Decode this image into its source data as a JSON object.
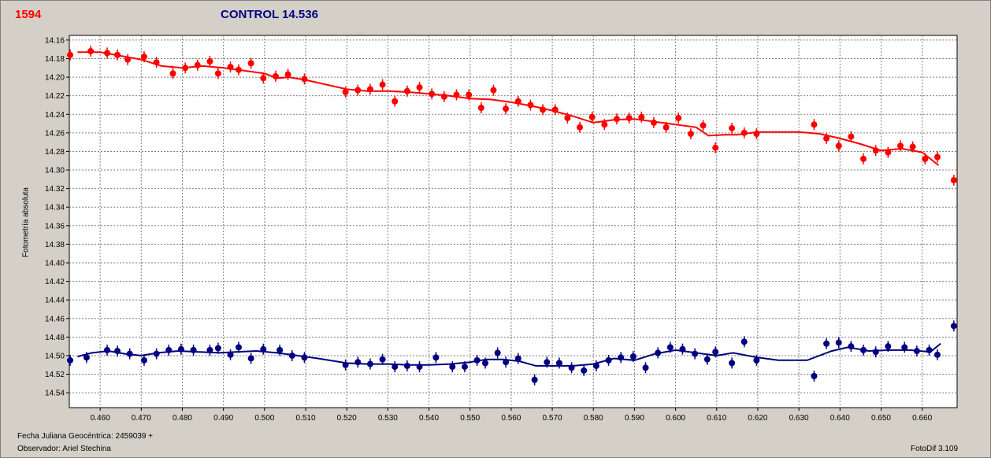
{
  "header": {
    "target_name": "1594",
    "control_label": "CONTROL 14.536"
  },
  "footer": {
    "jd_label": "Fecha Juliana Geocéntrica: 2459039 +",
    "observer": "Observador: Ariel Stechina",
    "software": "FotoDif 3.109"
  },
  "colors": {
    "target": "#ff0000",
    "control": "#000080",
    "plot_background": "#ffffff",
    "grid": "#808080",
    "window": "#d4d0c8"
  },
  "chart_data": {
    "type": "scatter",
    "title": "",
    "xlabel": "",
    "ylabel": "Fotometría absoluta",
    "xlim": [
      0.4525,
      0.6685
    ],
    "ylim": [
      14.556,
      14.155
    ],
    "y_inverted": true,
    "grid": true,
    "x_ticks": [
      "0.460",
      "0.470",
      "0.480",
      "0.490",
      "0.500",
      "0.510",
      "0.520",
      "0.530",
      "0.540",
      "0.550",
      "0.560",
      "0.570",
      "0.580",
      "0.590",
      "0.600",
      "0.610",
      "0.620",
      "0.630",
      "0.640",
      "0.650",
      "0.660"
    ],
    "y_ticks": [
      "14.16",
      "14.18",
      "14.20",
      "14.22",
      "14.24",
      "14.26",
      "14.28",
      "14.30",
      "14.32",
      "14.34",
      "14.36",
      "14.38",
      "14.40",
      "14.42",
      "14.44",
      "14.46",
      "14.48",
      "14.50",
      "14.52",
      "14.54"
    ],
    "series": [
      {
        "name": "1594",
        "color": "#ff0000",
        "points": [
          [
            0.4527,
            14.176
          ],
          [
            0.4577,
            14.172
          ],
          [
            0.4617,
            14.174
          ],
          [
            0.4642,
            14.176
          ],
          [
            0.4667,
            14.181
          ],
          [
            0.4707,
            14.178
          ],
          [
            0.4737,
            14.184
          ],
          [
            0.4777,
            14.196
          ],
          [
            0.4807,
            14.19
          ],
          [
            0.4837,
            14.187
          ],
          [
            0.4867,
            14.183
          ],
          [
            0.4887,
            14.196
          ],
          [
            0.4917,
            14.189
          ],
          [
            0.4937,
            14.192
          ],
          [
            0.4967,
            14.185
          ],
          [
            0.4997,
            14.201
          ],
          [
            0.5027,
            14.199
          ],
          [
            0.5057,
            14.197
          ],
          [
            0.5097,
            14.202
          ],
          [
            0.5197,
            14.216
          ],
          [
            0.5227,
            14.214
          ],
          [
            0.5257,
            14.213
          ],
          [
            0.5287,
            14.208
          ],
          [
            0.5317,
            14.226
          ],
          [
            0.5347,
            14.215
          ],
          [
            0.5377,
            14.211
          ],
          [
            0.5407,
            14.218
          ],
          [
            0.5437,
            14.221
          ],
          [
            0.5467,
            14.219
          ],
          [
            0.5497,
            14.219
          ],
          [
            0.5527,
            14.233
          ],
          [
            0.5557,
            14.214
          ],
          [
            0.5587,
            14.234
          ],
          [
            0.5617,
            14.226
          ],
          [
            0.5647,
            14.23
          ],
          [
            0.5677,
            14.235
          ],
          [
            0.5707,
            14.235
          ],
          [
            0.5737,
            14.244
          ],
          [
            0.5767,
            14.254
          ],
          [
            0.5797,
            14.243
          ],
          [
            0.5827,
            14.251
          ],
          [
            0.5857,
            14.245
          ],
          [
            0.5887,
            14.244
          ],
          [
            0.5917,
            14.243
          ],
          [
            0.5947,
            14.249
          ],
          [
            0.5977,
            14.254
          ],
          [
            0.6007,
            14.244
          ],
          [
            0.6037,
            14.261
          ],
          [
            0.6067,
            14.252
          ],
          [
            0.6097,
            14.276
          ],
          [
            0.6137,
            14.255
          ],
          [
            0.6167,
            14.26
          ],
          [
            0.6197,
            14.261
          ],
          [
            0.6337,
            14.251
          ],
          [
            0.6367,
            14.266
          ],
          [
            0.6397,
            14.274
          ],
          [
            0.6427,
            14.264
          ],
          [
            0.6457,
            14.288
          ],
          [
            0.6487,
            14.279
          ],
          [
            0.6517,
            14.281
          ],
          [
            0.6547,
            14.274
          ],
          [
            0.6577,
            14.275
          ],
          [
            0.6607,
            14.288
          ],
          [
            0.6637,
            14.286
          ],
          [
            0.6677,
            14.311
          ]
        ],
        "trend": [
          [
            0.4545,
            14.173
          ],
          [
            0.46,
            14.173
          ],
          [
            0.465,
            14.177
          ],
          [
            0.47,
            14.181
          ],
          [
            0.475,
            14.188
          ],
          [
            0.48,
            14.19
          ],
          [
            0.485,
            14.188
          ],
          [
            0.49,
            14.19
          ],
          [
            0.495,
            14.193
          ],
          [
            0.5,
            14.196
          ],
          [
            0.503,
            14.201
          ],
          [
            0.506,
            14.2
          ],
          [
            0.51,
            14.203
          ],
          [
            0.515,
            14.208
          ],
          [
            0.52,
            14.213
          ],
          [
            0.525,
            14.215
          ],
          [
            0.53,
            14.215
          ],
          [
            0.535,
            14.216
          ],
          [
            0.54,
            14.218
          ],
          [
            0.545,
            14.22
          ],
          [
            0.55,
            14.223
          ],
          [
            0.555,
            14.224
          ],
          [
            0.56,
            14.227
          ],
          [
            0.565,
            14.231
          ],
          [
            0.57,
            14.236
          ],
          [
            0.575,
            14.242
          ],
          [
            0.58,
            14.249
          ],
          [
            0.585,
            14.246
          ],
          [
            0.59,
            14.245
          ],
          [
            0.595,
            14.248
          ],
          [
            0.6,
            14.251
          ],
          [
            0.605,
            14.254
          ],
          [
            0.608,
            14.263
          ],
          [
            0.612,
            14.262
          ],
          [
            0.615,
            14.262
          ],
          [
            0.62,
            14.259
          ],
          [
            0.625,
            14.259
          ],
          [
            0.63,
            14.259
          ],
          [
            0.635,
            14.261
          ],
          [
            0.64,
            14.266
          ],
          [
            0.645,
            14.272
          ],
          [
            0.65,
            14.279
          ],
          [
            0.655,
            14.277
          ],
          [
            0.66,
            14.281
          ],
          [
            0.664,
            14.295
          ]
        ]
      },
      {
        "name": "CONTROL 14.536",
        "color": "#000080",
        "points": [
          [
            0.4527,
            14.505
          ],
          [
            0.4567,
            14.502
          ],
          [
            0.4617,
            14.494
          ],
          [
            0.4642,
            14.495
          ],
          [
            0.4672,
            14.498
          ],
          [
            0.4707,
            14.505
          ],
          [
            0.4737,
            14.498
          ],
          [
            0.4767,
            14.494
          ],
          [
            0.4797,
            14.493
          ],
          [
            0.4827,
            14.494
          ],
          [
            0.4867,
            14.494
          ],
          [
            0.4887,
            14.492
          ],
          [
            0.4917,
            14.499
          ],
          [
            0.4937,
            14.491
          ],
          [
            0.4967,
            14.503
          ],
          [
            0.4997,
            14.493
          ],
          [
            0.5037,
            14.494
          ],
          [
            0.5067,
            14.5
          ],
          [
            0.5097,
            14.502
          ],
          [
            0.5197,
            14.51
          ],
          [
            0.5227,
            14.507
          ],
          [
            0.5257,
            14.509
          ],
          [
            0.5287,
            14.504
          ],
          [
            0.5317,
            14.512
          ],
          [
            0.5347,
            14.511
          ],
          [
            0.5377,
            14.512
          ],
          [
            0.5417,
            14.502
          ],
          [
            0.5457,
            14.512
          ],
          [
            0.5487,
            14.512
          ],
          [
            0.5517,
            14.505
          ],
          [
            0.5537,
            14.508
          ],
          [
            0.5567,
            14.497
          ],
          [
            0.5587,
            14.507
          ],
          [
            0.5617,
            14.503
          ],
          [
            0.5657,
            14.526
          ],
          [
            0.5687,
            14.507
          ],
          [
            0.5717,
            14.508
          ],
          [
            0.5747,
            14.513
          ],
          [
            0.5777,
            14.516
          ],
          [
            0.5807,
            14.511
          ],
          [
            0.5837,
            14.505
          ],
          [
            0.5867,
            14.502
          ],
          [
            0.5897,
            14.501
          ],
          [
            0.5927,
            14.513
          ],
          [
            0.5957,
            14.497
          ],
          [
            0.5987,
            14.491
          ],
          [
            0.6017,
            14.493
          ],
          [
            0.6047,
            14.498
          ],
          [
            0.6077,
            14.504
          ],
          [
            0.6097,
            14.496
          ],
          [
            0.6137,
            14.508
          ],
          [
            0.6167,
            14.485
          ],
          [
            0.6197,
            14.505
          ],
          [
            0.6337,
            14.522
          ],
          [
            0.6367,
            14.487
          ],
          [
            0.6397,
            14.486
          ],
          [
            0.6427,
            14.49
          ],
          [
            0.6457,
            14.494
          ],
          [
            0.6487,
            14.496
          ],
          [
            0.6517,
            14.49
          ],
          [
            0.6557,
            14.491
          ],
          [
            0.6587,
            14.495
          ],
          [
            0.6617,
            14.494
          ],
          [
            0.6637,
            14.499
          ],
          [
            0.6677,
            14.468
          ]
        ],
        "trend": [
          [
            0.4545,
            14.501
          ],
          [
            0.458,
            14.497
          ],
          [
            0.462,
            14.495
          ],
          [
            0.466,
            14.498
          ],
          [
            0.47,
            14.5
          ],
          [
            0.474,
            14.497
          ],
          [
            0.479,
            14.495
          ],
          [
            0.484,
            14.496
          ],
          [
            0.489,
            14.497
          ],
          [
            0.493,
            14.496
          ],
          [
            0.498,
            14.495
          ],
          [
            0.503,
            14.497
          ],
          [
            0.508,
            14.5
          ],
          [
            0.513,
            14.503
          ],
          [
            0.52,
            14.508
          ],
          [
            0.525,
            14.509
          ],
          [
            0.53,
            14.509
          ],
          [
            0.535,
            14.51
          ],
          [
            0.54,
            14.51
          ],
          [
            0.545,
            14.509
          ],
          [
            0.55,
            14.507
          ],
          [
            0.554,
            14.504
          ],
          [
            0.558,
            14.504
          ],
          [
            0.562,
            14.506
          ],
          [
            0.566,
            14.511
          ],
          [
            0.57,
            14.511
          ],
          [
            0.575,
            14.511
          ],
          [
            0.58,
            14.509
          ],
          [
            0.585,
            14.503
          ],
          [
            0.59,
            14.505
          ],
          [
            0.595,
            14.498
          ],
          [
            0.6,
            14.494
          ],
          [
            0.605,
            14.497
          ],
          [
            0.61,
            14.5
          ],
          [
            0.614,
            14.497
          ],
          [
            0.62,
            14.502
          ],
          [
            0.625,
            14.505
          ],
          [
            0.632,
            14.505
          ],
          [
            0.638,
            14.495
          ],
          [
            0.642,
            14.491
          ],
          [
            0.647,
            14.495
          ],
          [
            0.652,
            14.494
          ],
          [
            0.657,
            14.494
          ],
          [
            0.662,
            14.496
          ],
          [
            0.6645,
            14.487
          ]
        ]
      }
    ]
  }
}
